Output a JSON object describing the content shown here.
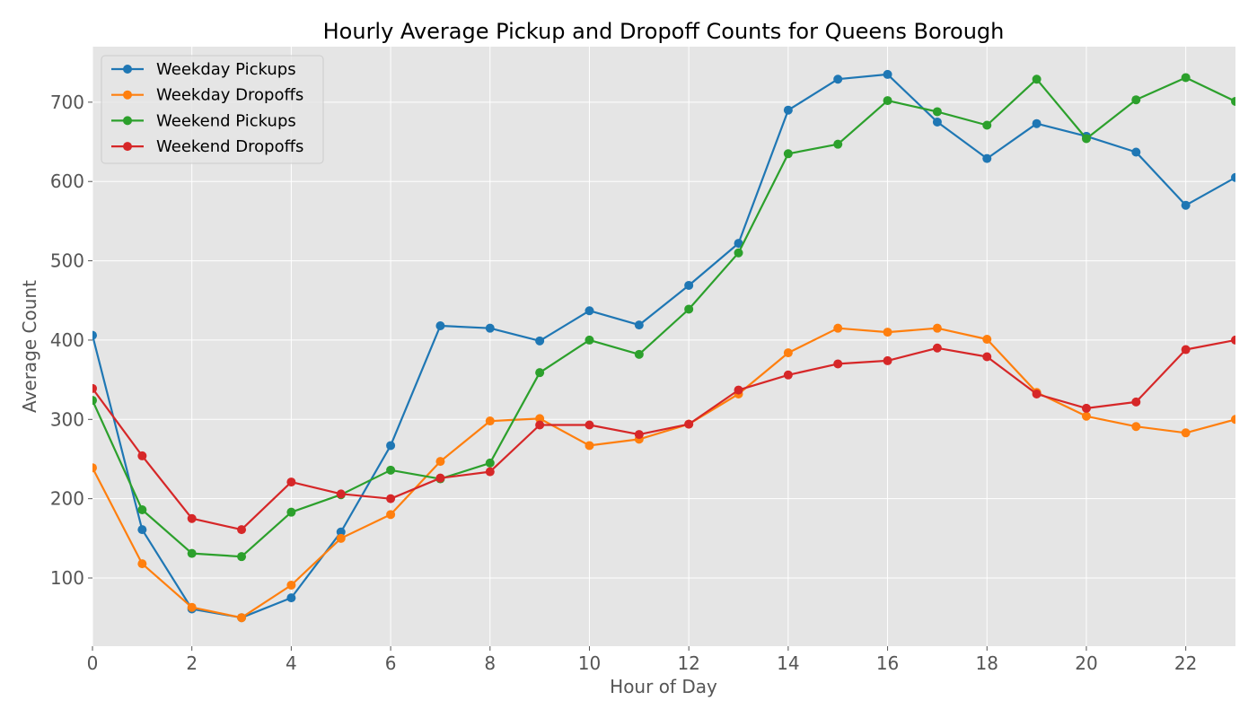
{
  "chart_data": {
    "type": "line",
    "title": "Hourly Average Pickup and Dropoff Counts for Queens Borough",
    "xlabel": "Hour of Day",
    "ylabel": "Average Count",
    "x": [
      0,
      1,
      2,
      3,
      4,
      5,
      6,
      7,
      8,
      9,
      10,
      11,
      12,
      13,
      14,
      15,
      16,
      17,
      18,
      19,
      20,
      21,
      22,
      23
    ],
    "xlim": [
      0,
      23
    ],
    "ylim": [
      14,
      770
    ],
    "xticks": [
      0,
      2,
      4,
      6,
      8,
      10,
      12,
      14,
      16,
      18,
      20,
      22
    ],
    "yticks": [
      100,
      200,
      300,
      400,
      500,
      600,
      700
    ],
    "grid": true,
    "legend_position": "top-left",
    "background": "#e5e5e5",
    "series": [
      {
        "name": "Weekday Pickups",
        "color": "#1f77b4",
        "values": [
          406,
          161,
          61,
          50,
          75,
          158,
          267,
          418,
          415,
          399,
          437,
          419,
          469,
          522,
          690,
          729,
          735,
          675,
          629,
          673,
          657,
          637,
          570,
          605
        ]
      },
      {
        "name": "Weekday Dropoffs",
        "color": "#ff7f0e",
        "values": [
          239,
          118,
          63,
          50,
          91,
          150,
          180,
          247,
          298,
          301,
          267,
          275,
          294,
          332,
          384,
          415,
          410,
          415,
          401,
          334,
          304,
          291,
          283,
          300
        ]
      },
      {
        "name": "Weekend Pickups",
        "color": "#2ca02c",
        "values": [
          324,
          186,
          131,
          127,
          183,
          205,
          236,
          225,
          245,
          359,
          400,
          382,
          439,
          510,
          635,
          647,
          702,
          688,
          671,
          729,
          654,
          703,
          731,
          701
        ]
      },
      {
        "name": "Weekend Dropoffs",
        "color": "#d62728",
        "values": [
          339,
          254,
          175,
          161,
          221,
          206,
          200,
          226,
          234,
          293,
          293,
          281,
          294,
          337,
          356,
          370,
          374,
          390,
          379,
          332,
          314,
          322,
          388,
          400
        ]
      }
    ]
  }
}
